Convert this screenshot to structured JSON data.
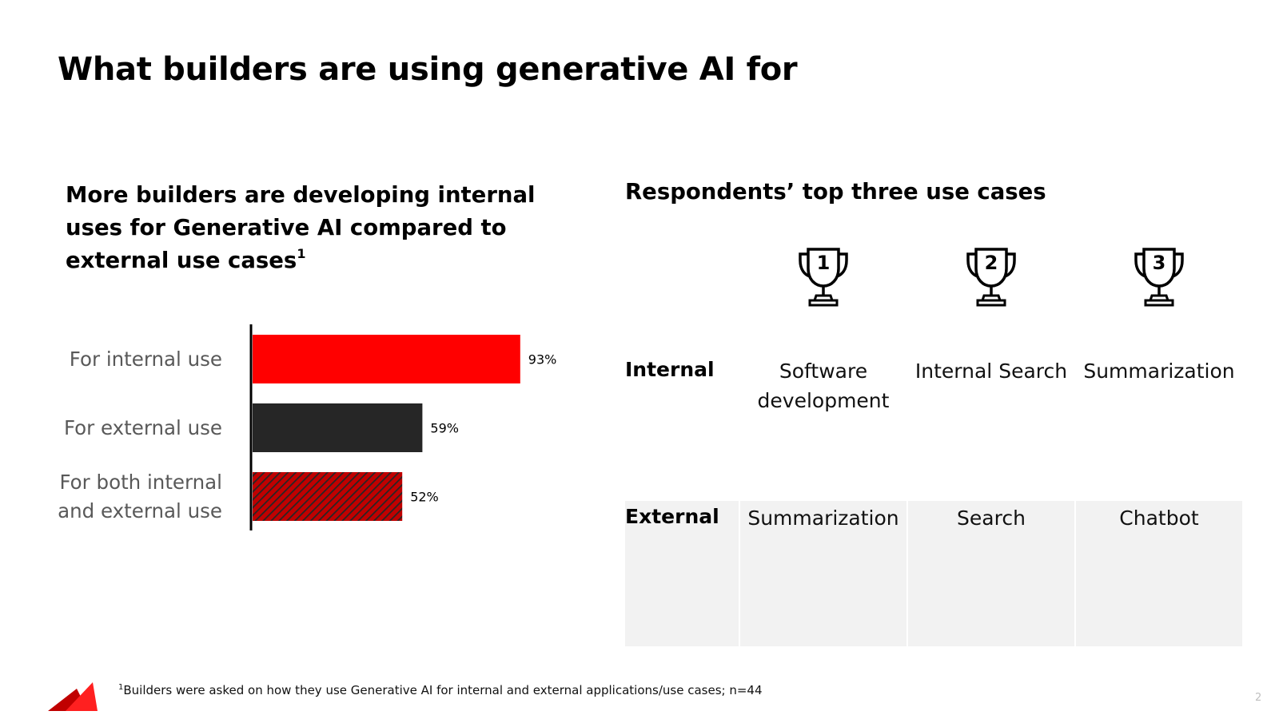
{
  "slide": {
    "title": "What builders are using generative AI for",
    "page_number": "2"
  },
  "left": {
    "heading": "More builders are developing internal uses for Generative AI compared to external use cases",
    "heading_footnote_marker": "1"
  },
  "chart_data": {
    "type": "bar",
    "orientation": "horizontal",
    "categories": [
      "For internal use",
      "For external use",
      "For both internal and external use"
    ],
    "category_lines": [
      [
        "For internal use"
      ],
      [
        "For external use"
      ],
      [
        "For both internal",
        "and external use"
      ]
    ],
    "values": [
      93,
      59,
      52
    ],
    "data_labels": [
      "93%",
      "59%",
      "52%"
    ],
    "colors": [
      "#ff0000",
      "#262626",
      "#c00000"
    ],
    "patterns": [
      "solid",
      "solid",
      "hatched"
    ],
    "xlim": [
      0,
      100
    ],
    "grid": false,
    "legend": "none"
  },
  "right": {
    "heading": "Respondents’ top three use cases",
    "ranks": [
      "1",
      "2",
      "3"
    ],
    "rows": [
      {
        "label": "Internal",
        "items": [
          "Software development",
          "Internal Search",
          "Summarization"
        ]
      },
      {
        "label": "External",
        "items": [
          "Summarization",
          "Search",
          "Chatbot"
        ]
      }
    ],
    "icon": "trophy-icon"
  },
  "footnote": {
    "marker": "1",
    "text": "Builders were asked on how they use Generative AI for internal and external applications/use cases; n=44"
  },
  "colors": {
    "accent": "#ff0000",
    "dark": "#262626",
    "hatch": "#c00000",
    "table_bg": "#f2f2f2"
  }
}
